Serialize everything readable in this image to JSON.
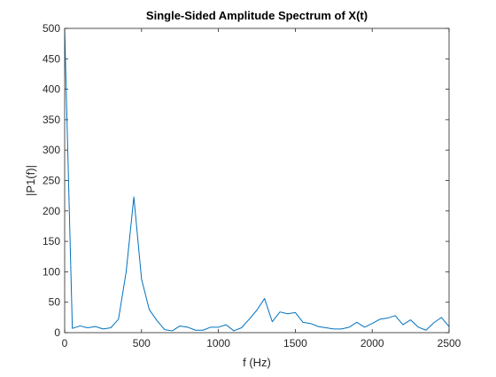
{
  "chart_data": {
    "type": "line",
    "title": "Single-Sided Amplitude Spectrum of X(t)",
    "xlabel": "f (Hz)",
    "ylabel": "|P1(f)|",
    "xlim": [
      0,
      2500
    ],
    "ylim": [
      0,
      500
    ],
    "xticks": [
      0,
      500,
      1000,
      1500,
      2000,
      2500
    ],
    "yticks": [
      0,
      50,
      100,
      150,
      200,
      250,
      300,
      350,
      400,
      450,
      500
    ],
    "grid": false,
    "line_color": "#0072bd",
    "series": [
      {
        "x": [
          0,
          50,
          100,
          150,
          200,
          250,
          300,
          350,
          400,
          450,
          500,
          550,
          600,
          650,
          700,
          750,
          800,
          850,
          900,
          950,
          1000,
          1050,
          1100,
          1150,
          1200,
          1250,
          1300,
          1350,
          1400,
          1450,
          1500,
          1550,
          1600,
          1650,
          1700,
          1750,
          1800,
          1850,
          1900,
          1950,
          2000,
          2050,
          2100,
          2150,
          2200,
          2250,
          2300,
          2350,
          2400,
          2450,
          2500
        ],
        "y": [
          498,
          7,
          11,
          8,
          10,
          6,
          8,
          22,
          100,
          223,
          88,
          38,
          20,
          5,
          3,
          11,
          9,
          4,
          4,
          9,
          9,
          13,
          3,
          8,
          22,
          37,
          56,
          18,
          34,
          31,
          33,
          17,
          15,
          10,
          8,
          6,
          6,
          9,
          17,
          9,
          15,
          22,
          24,
          28,
          13,
          21,
          9,
          4,
          16,
          25,
          10
        ]
      }
    ]
  }
}
